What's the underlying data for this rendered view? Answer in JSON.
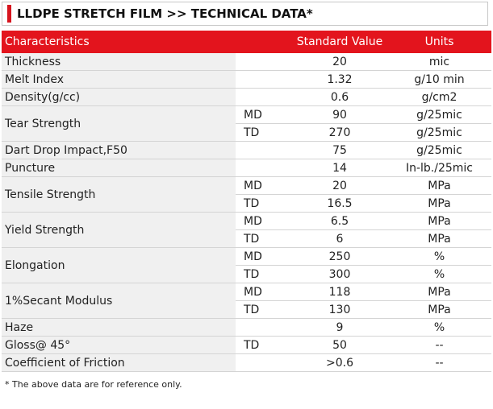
{
  "header": {
    "title": "LLDPE STRETCH FILM >> TECHNICAL DATA*"
  },
  "table": {
    "columns": [
      "Characteristics",
      "Standard Value",
      "Units"
    ],
    "rows": [
      {
        "characteristic": "Thickness",
        "entries": [
          {
            "value": "20",
            "unit": "mic"
          }
        ]
      },
      {
        "characteristic": "Melt Index",
        "entries": [
          {
            "value": "1.32",
            "unit": "g/10 min"
          }
        ]
      },
      {
        "characteristic": "Density(g/cc)",
        "entries": [
          {
            "value": "0.6",
            "unit": "g/cm2"
          }
        ]
      },
      {
        "characteristic": "Tear Strength",
        "entries": [
          {
            "direction": "MD",
            "value": "90",
            "unit": "g/25mic"
          },
          {
            "direction": "TD",
            "value": "270",
            "unit": "g/25mic"
          }
        ]
      },
      {
        "characteristic": "Dart Drop Impact,F50",
        "entries": [
          {
            "value": "75",
            "unit": "g/25mic"
          }
        ]
      },
      {
        "characteristic": "Puncture",
        "entries": [
          {
            "value": "14",
            "unit": "In-lb./25mic"
          }
        ]
      },
      {
        "characteristic": "Tensile Strength",
        "entries": [
          {
            "direction": "MD",
            "value": "20",
            "unit": "MPa"
          },
          {
            "direction": "TD",
            "value": "16.5",
            "unit": "MPa"
          }
        ]
      },
      {
        "characteristic": "Yield Strength",
        "entries": [
          {
            "direction": "MD",
            "value": "6.5",
            "unit": "MPa"
          },
          {
            "direction": "TD",
            "value": "6",
            "unit": "MPa"
          }
        ]
      },
      {
        "characteristic": "Elongation",
        "entries": [
          {
            "direction": "MD",
            "value": "250",
            "unit": "%"
          },
          {
            "direction": "TD",
            "value": "300",
            "unit": "%"
          }
        ]
      },
      {
        "characteristic": "1%Secant Modulus",
        "entries": [
          {
            "direction": "MD",
            "value": "118",
            "unit": "MPa"
          },
          {
            "direction": "TD",
            "value": "130",
            "unit": "MPa"
          }
        ]
      },
      {
        "characteristic": "Haze",
        "entries": [
          {
            "value": "9",
            "unit": "%"
          }
        ]
      },
      {
        "characteristic": "Gloss@ 45°",
        "entries": [
          {
            "direction": "TD",
            "value": "50",
            "unit": "--"
          }
        ]
      },
      {
        "characteristic": "Coefficient of Friction",
        "entries": [
          {
            "value": ">0.6",
            "unit": "--"
          }
        ]
      }
    ]
  },
  "footnote": "* The above data are for reference only."
}
